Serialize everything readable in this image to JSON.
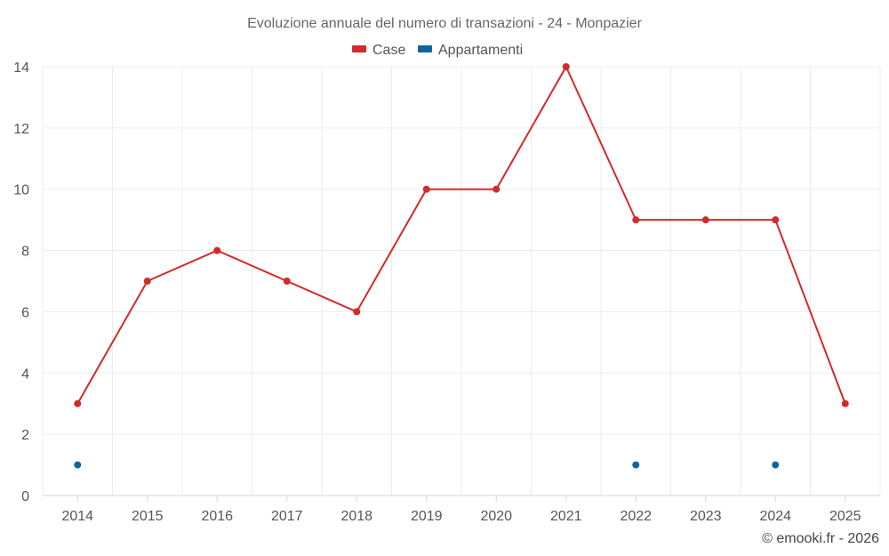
{
  "chart_data": {
    "type": "line",
    "title": "Evoluzione annuale del numero di transazioni - 24 - Monpazier",
    "categories": [
      "2014",
      "2015",
      "2016",
      "2017",
      "2018",
      "2019",
      "2020",
      "2021",
      "2022",
      "2023",
      "2024",
      "2025"
    ],
    "series": [
      {
        "name": "Case",
        "color": "#d32a2a",
        "values": [
          3,
          7,
          8,
          7,
          6,
          10,
          10,
          14,
          9,
          9,
          9,
          3
        ],
        "line": true
      },
      {
        "name": "Appartamenti",
        "color": "#0e65a0",
        "values": [
          1,
          null,
          null,
          null,
          null,
          null,
          null,
          null,
          1,
          null,
          1,
          null
        ],
        "line": false
      }
    ],
    "yticks": [
      0,
      2,
      4,
      6,
      8,
      10,
      12,
      14
    ],
    "ylim": [
      0,
      14
    ],
    "xlabel": "",
    "ylabel": "",
    "legend_position": "top-center",
    "grid": true
  },
  "credit": "© emooki.fr - 2026"
}
